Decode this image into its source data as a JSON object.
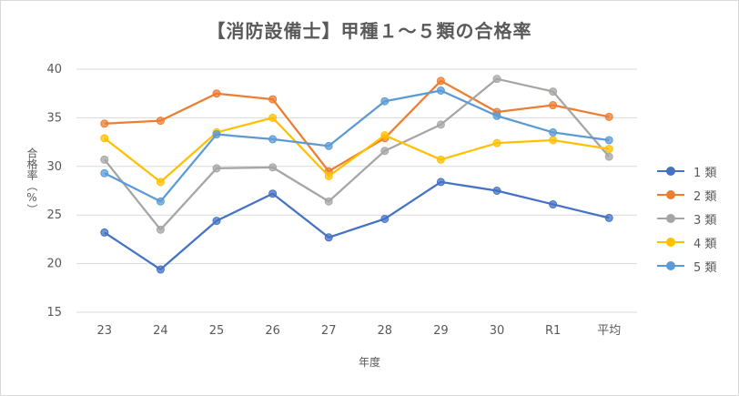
{
  "chart_data": {
    "type": "line",
    "title": "【消防設備士】甲種１～５類の合格率",
    "xlabel": "年度",
    "ylabel": "合格率（%）",
    "ylim": [
      15,
      40
    ],
    "yticks": [
      15,
      20,
      25,
      30,
      35,
      40
    ],
    "grid": true,
    "legend_position": "right",
    "categories": [
      "23",
      "24",
      "25",
      "26",
      "27",
      "28",
      "29",
      "30",
      "R1",
      "平均"
    ],
    "series": [
      {
        "name": "1 類",
        "color": "#4472c4",
        "values": [
          23.2,
          19.4,
          24.4,
          27.2,
          22.7,
          24.6,
          28.4,
          27.5,
          26.1,
          24.7
        ]
      },
      {
        "name": "2 類",
        "color": "#ed7d31",
        "values": [
          34.4,
          34.7,
          37.5,
          36.9,
          29.5,
          32.9,
          38.8,
          35.6,
          36.3,
          35.1
        ]
      },
      {
        "name": "3 類",
        "color": "#a5a5a5",
        "values": [
          30.7,
          23.5,
          29.8,
          29.9,
          26.4,
          31.6,
          34.3,
          39.0,
          37.7,
          31.0
        ]
      },
      {
        "name": "4 類",
        "color": "#ffc000",
        "values": [
          32.9,
          28.4,
          33.5,
          35.0,
          29.0,
          33.2,
          30.7,
          32.4,
          32.7,
          31.8
        ]
      },
      {
        "name": "5 類",
        "color": "#5b9bd5",
        "values": [
          29.3,
          26.4,
          33.3,
          32.8,
          32.1,
          36.7,
          37.8,
          35.2,
          33.5,
          32.7
        ]
      }
    ]
  }
}
